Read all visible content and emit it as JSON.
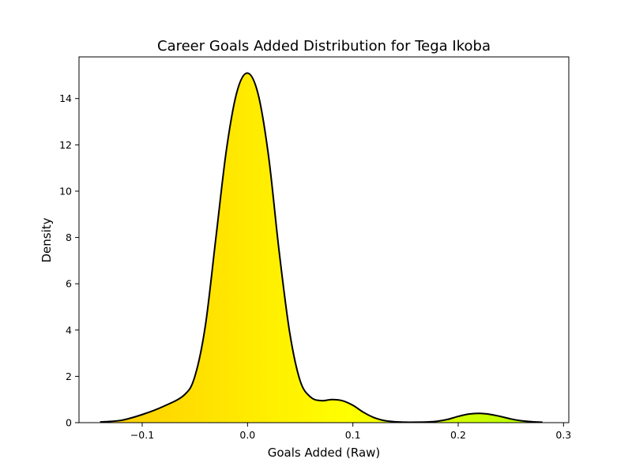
{
  "chart_data": {
    "type": "area",
    "title": "Career Goals Added Distribution for Tega Ikoba",
    "xlabel": "Goals Added (Raw)",
    "ylabel": "Density",
    "xlim": [
      -0.16,
      0.305
    ],
    "ylim": [
      0,
      15.8
    ],
    "x_ticks": [
      -0.1,
      0.0,
      0.1,
      0.2,
      0.3
    ],
    "x_tick_labels": [
      "−0.1",
      "0.0",
      "0.1",
      "0.2",
      "0.3"
    ],
    "y_ticks": [
      0,
      2,
      4,
      6,
      8,
      10,
      12,
      14
    ],
    "y_tick_labels": [
      "0",
      "2",
      "4",
      "6",
      "8",
      "10",
      "12",
      "14"
    ],
    "grid": false,
    "series": [
      {
        "x": [
          -0.14,
          -0.12,
          -0.1,
          -0.08,
          -0.06,
          -0.05,
          -0.04,
          -0.03,
          -0.02,
          -0.01,
          0.0,
          0.01,
          0.02,
          0.03,
          0.04,
          0.05,
          0.06,
          0.07,
          0.08,
          0.09,
          0.1,
          0.11,
          0.12,
          0.13,
          0.14,
          0.15,
          0.16,
          0.17,
          0.18,
          0.19,
          0.2,
          0.21,
          0.22,
          0.23,
          0.24,
          0.25,
          0.26,
          0.27,
          0.28
        ],
        "y": [
          0.03,
          0.1,
          0.35,
          0.7,
          1.2,
          2.0,
          4.2,
          8.0,
          11.8,
          14.3,
          15.1,
          14.2,
          11.5,
          7.4,
          3.9,
          1.8,
          1.1,
          0.95,
          1.0,
          0.95,
          0.75,
          0.45,
          0.22,
          0.09,
          0.04,
          0.02,
          0.02,
          0.03,
          0.06,
          0.14,
          0.27,
          0.37,
          0.4,
          0.36,
          0.27,
          0.16,
          0.08,
          0.04,
          0.02
        ]
      }
    ],
    "colormap": {
      "low": "#ffc800",
      "mid": "#ffff00",
      "high": "#a8ff00"
    },
    "line_color": "#000000"
  }
}
